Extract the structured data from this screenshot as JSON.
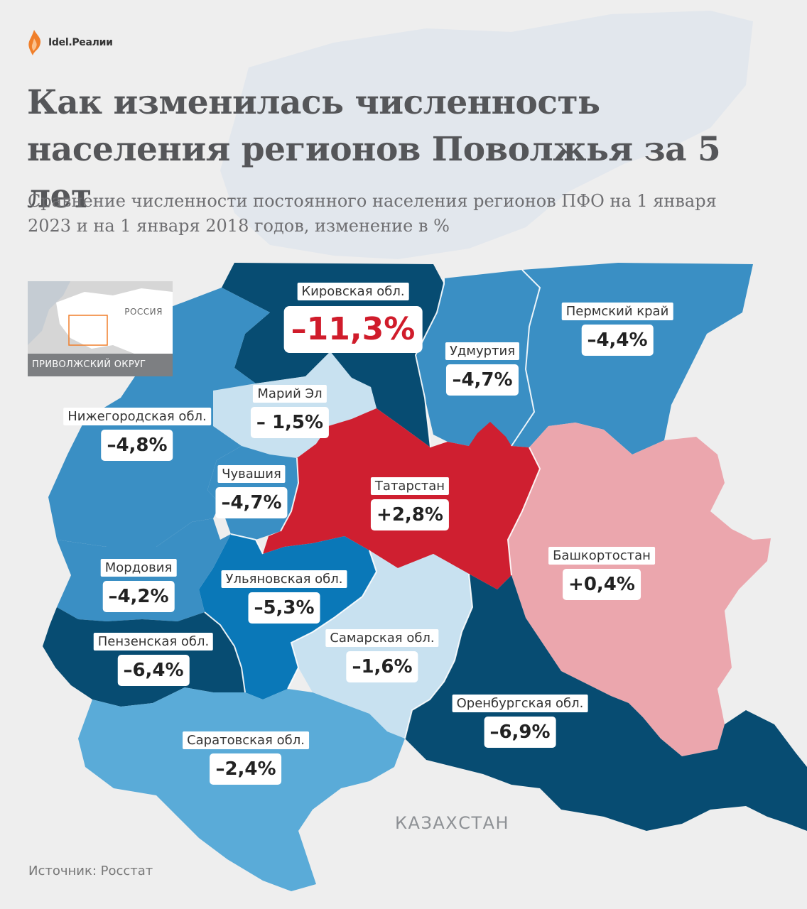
{
  "header": {
    "logo_text": "Idel.Реалии",
    "title": "Как изменилась численность населения регионов Поволжья за 5 лет",
    "subtitle": "Сравнение численности постоянного населения регионов ПФО на 1 января 2023 и на 1 января 2018 годов, изменение в %"
  },
  "inset": {
    "country_label": "РОССИЯ",
    "district_label": "ПРИВОЛЖСКИЙ ОКРУГ"
  },
  "map": {
    "neighbor_label": "КАЗАХСТАН",
    "colors": {
      "decline_strong": "#074c72",
      "decline_medium": "#0a78b8",
      "decline_moderate": "#3a8fc4",
      "decline_light": "#5aabd8",
      "decline_small": "#c8e1f0",
      "growth_strong": "#cf1f30",
      "growth_small": "#eba6ad"
    }
  },
  "regions": [
    {
      "name": "Кировская обл.",
      "value": "–11,3%",
      "change": -11.3
    },
    {
      "name": "Удмуртия",
      "value": "–4,7%",
      "change": -4.7
    },
    {
      "name": "Пермский край",
      "value": "–4,4%",
      "change": -4.4
    },
    {
      "name": "Марий Эл",
      "value": "– 1,5%",
      "change": -1.5
    },
    {
      "name": "Нижегородская обл.",
      "value": "–4,8%",
      "change": -4.8
    },
    {
      "name": "Чувашия",
      "value": "–4,7%",
      "change": -4.7
    },
    {
      "name": "Татарстан",
      "value": "+2,8%",
      "change": 2.8
    },
    {
      "name": "Башкортостан",
      "value": "+0,4%",
      "change": 0.4
    },
    {
      "name": "Мордовия",
      "value": "–4,2%",
      "change": -4.2
    },
    {
      "name": "Ульяновская обл.",
      "value": "–5,3%",
      "change": -5.3
    },
    {
      "name": "Самарская обл.",
      "value": "–1,6%",
      "change": -1.6
    },
    {
      "name": "Пензенская обл.",
      "value": "–6,4%",
      "change": -6.4
    },
    {
      "name": "Оренбургская обл.",
      "value": "–6,9%",
      "change": -6.9
    },
    {
      "name": "Саратовская обл.",
      "value": "–2,4%",
      "change": -2.4
    }
  ],
  "footer": {
    "source": "Источник: Росстат"
  }
}
